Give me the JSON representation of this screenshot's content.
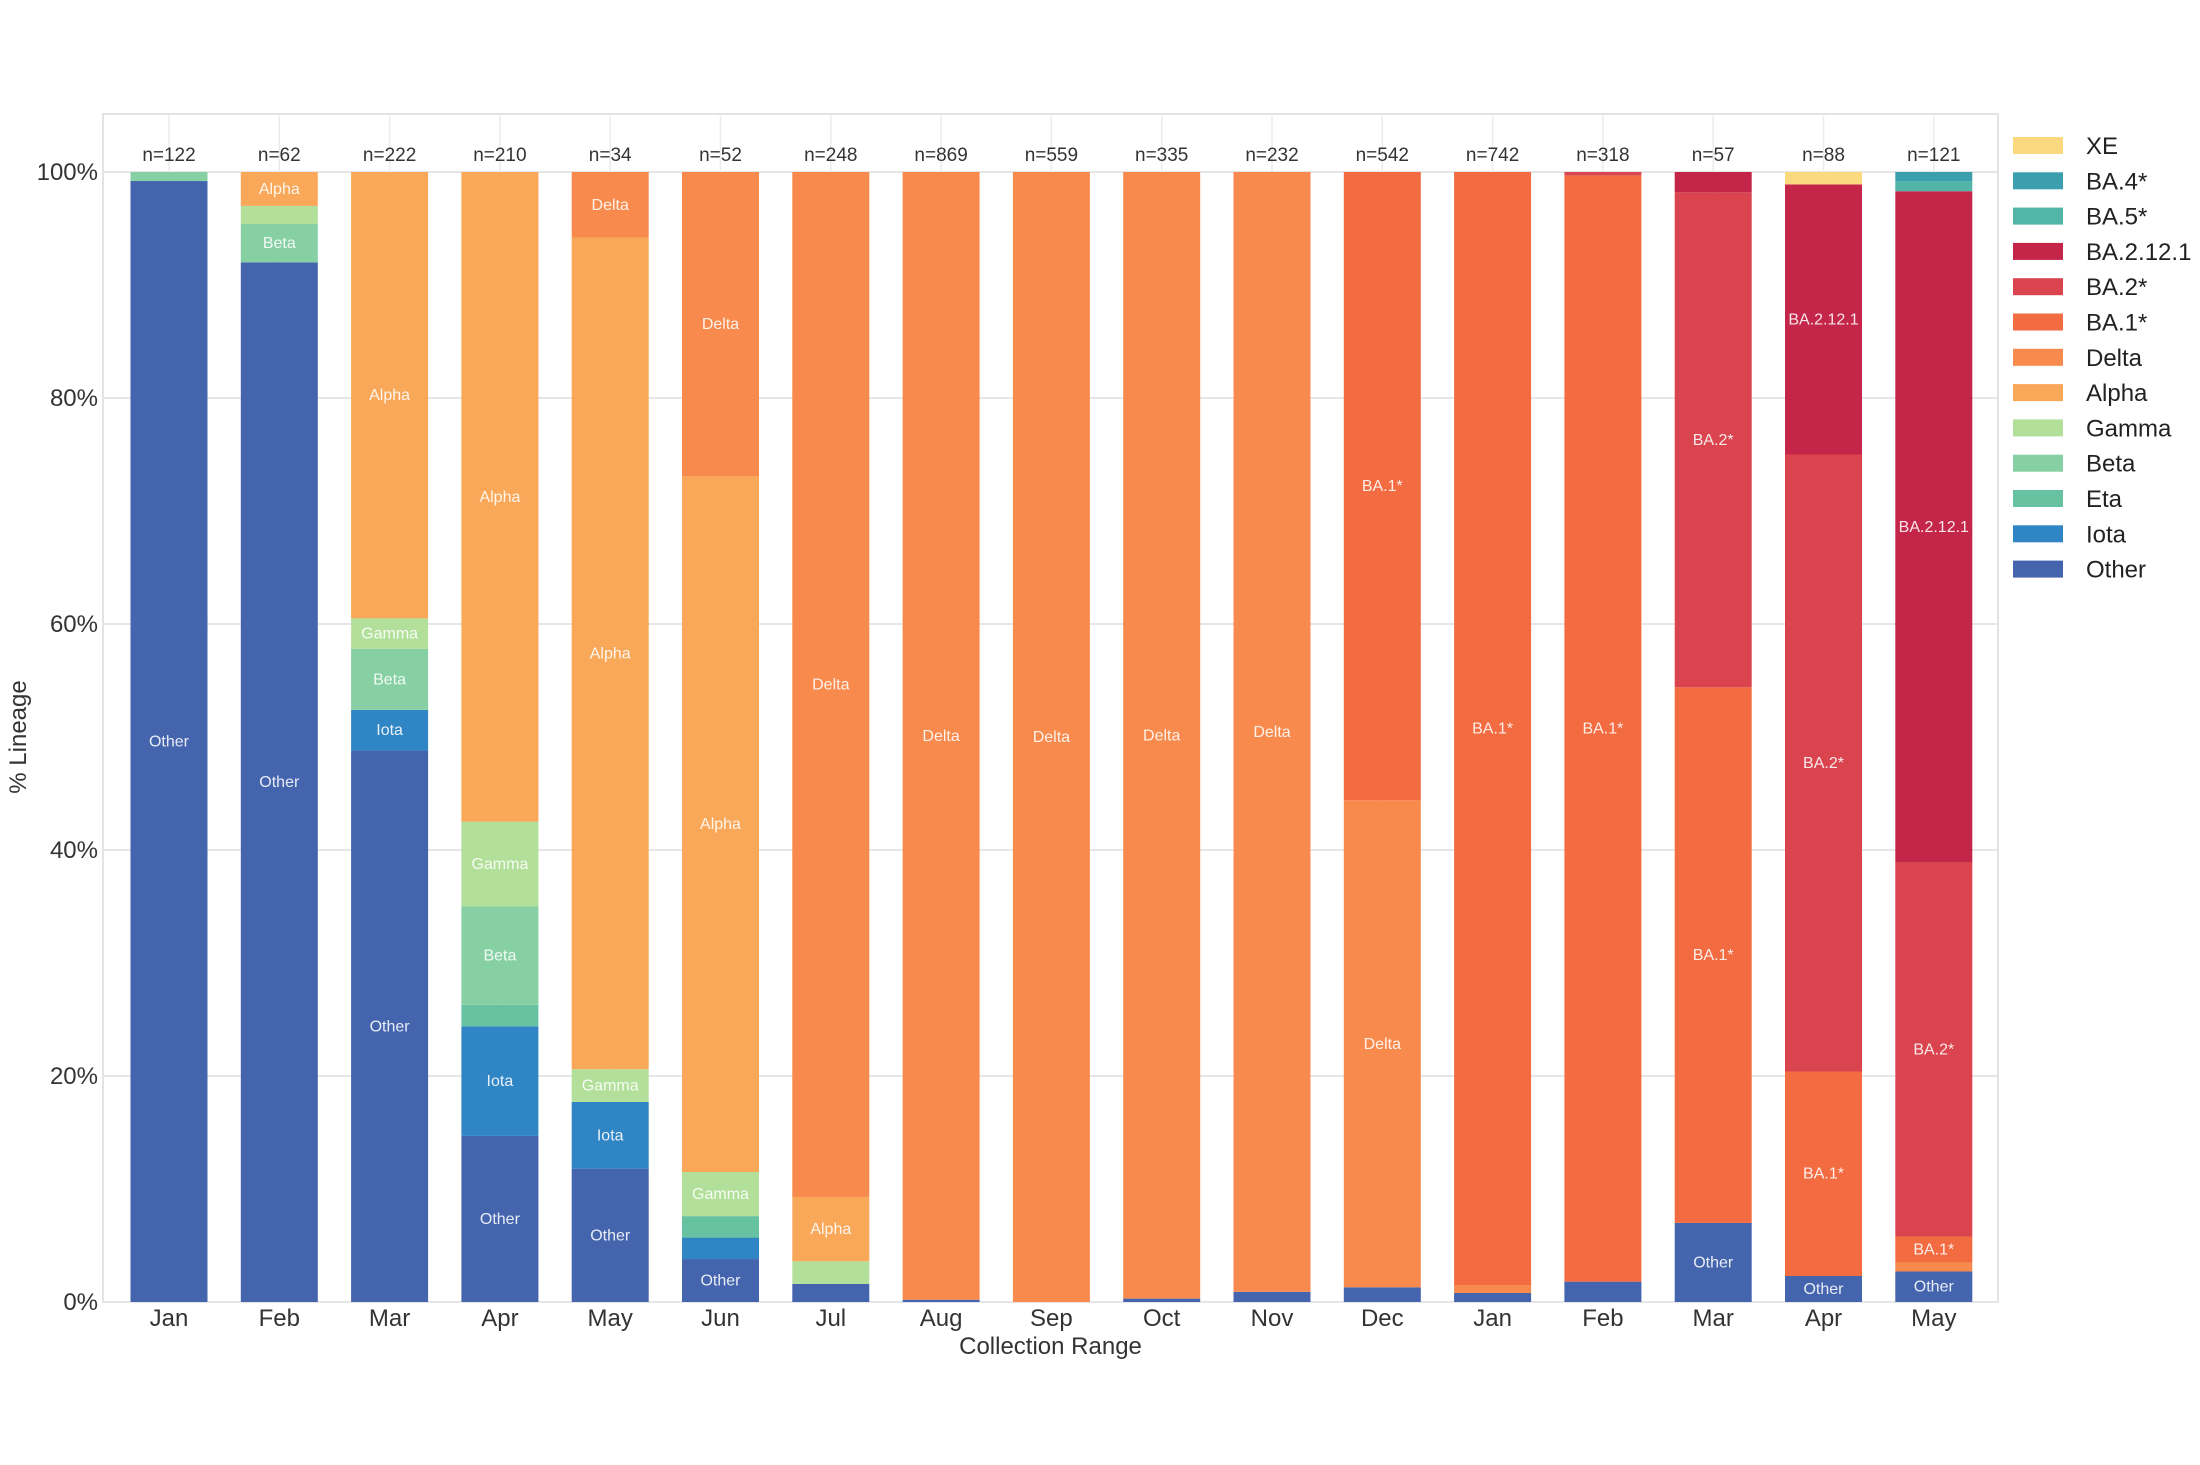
{
  "chart_data": {
    "type": "bar",
    "stacked": true,
    "title": "",
    "xlabel": "Collection Range",
    "ylabel": "% Lineage",
    "ylim": [
      0,
      100
    ],
    "yticks": [
      "0%",
      "20%",
      "40%",
      "60%",
      "80%",
      "100%"
    ],
    "ytick_values": [
      0,
      20,
      40,
      60,
      80,
      100
    ],
    "grid": true,
    "legend_position": "right",
    "categories": [
      "Jan",
      "Feb",
      "Mar",
      "Apr",
      "May",
      "Jun",
      "Jul",
      "Aug",
      "Sep",
      "Oct",
      "Nov",
      "Dec",
      "Jan",
      "Feb",
      "Mar",
      "Apr",
      "May"
    ],
    "sample_counts": [
      "n=122",
      "n=62",
      "n=222",
      "n=210",
      "n=34",
      "n=52",
      "n=248",
      "n=869",
      "n=559",
      "n=335",
      "n=232",
      "n=542",
      "n=742",
      "n=318",
      "n=57",
      "n=88",
      "n=121"
    ],
    "legend": [
      {
        "name": "XE",
        "color": "#fbd97f"
      },
      {
        "name": "BA.4*",
        "color": "#3b9fae"
      },
      {
        "name": "BA.5*",
        "color": "#52b5a8"
      },
      {
        "name": "BA.2.12.1",
        "color": "#c4264a"
      },
      {
        "name": "BA.2*",
        "color": "#d9444e"
      },
      {
        "name": "BA.1*",
        "color": "#f26b41"
      },
      {
        "name": "Delta",
        "color": "#f78a4c"
      },
      {
        "name": "Alpha",
        "color": "#f9a85a"
      },
      {
        "name": "Gamma",
        "color": "#b2e09a"
      },
      {
        "name": "Beta",
        "color": "#86d0a3"
      },
      {
        "name": "Eta",
        "color": "#66c2a0"
      },
      {
        "name": "Iota",
        "color": "#3085c4"
      },
      {
        "name": "Other",
        "color": "#4464ae"
      }
    ],
    "series": [
      {
        "name": "Other",
        "values": [
          99.2,
          92.0,
          48.8,
          14.7,
          11.8,
          3.8,
          1.6,
          0.2,
          0.0,
          0.3,
          0.9,
          1.3,
          0.8,
          1.8,
          7.0,
          2.3,
          2.7
        ]
      },
      {
        "name": "Iota",
        "values": [
          0,
          0,
          3.6,
          9.7,
          5.9,
          1.9,
          0,
          0,
          0,
          0,
          0,
          0,
          0,
          0,
          0,
          0,
          0
        ]
      },
      {
        "name": "Eta",
        "values": [
          0,
          0,
          0,
          1.9,
          0,
          1.9,
          0,
          0,
          0,
          0,
          0,
          0,
          0,
          0,
          0,
          0,
          0
        ]
      },
      {
        "name": "Beta",
        "values": [
          0.8,
          3.4,
          5.4,
          8.7,
          0,
          0,
          0,
          0,
          0,
          0,
          0,
          0,
          0,
          0,
          0,
          0,
          0
        ]
      },
      {
        "name": "Gamma",
        "values": [
          0,
          1.6,
          2.7,
          7.5,
          2.9,
          3.9,
          2.0,
          0,
          0,
          0,
          0,
          0,
          0,
          0,
          0,
          0,
          0
        ]
      },
      {
        "name": "Alpha",
        "values": [
          0,
          3.0,
          39.5,
          57.5,
          73.6,
          61.6,
          5.7,
          0,
          0,
          0,
          0,
          0,
          0,
          0,
          0,
          0,
          0
        ]
      },
      {
        "name": "Delta",
        "values": [
          0,
          0,
          0,
          0,
          5.8,
          26.9,
          90.7,
          99.8,
          100,
          99.7,
          99.1,
          43.1,
          0.7,
          0,
          0,
          0,
          0.8
        ]
      },
      {
        "name": "BA.1*",
        "values": [
          0,
          0,
          0,
          0,
          0,
          0,
          0,
          0,
          0,
          0,
          0,
          55.6,
          98.5,
          97.9,
          47.4,
          18.1,
          2.3
        ]
      },
      {
        "name": "BA.2*",
        "values": [
          0,
          0,
          0,
          0,
          0,
          0,
          0,
          0,
          0,
          0,
          0,
          0,
          0,
          0.3,
          43.8,
          54.6,
          33.1
        ]
      },
      {
        "name": "BA.2.12.1",
        "values": [
          0,
          0,
          0,
          0,
          0,
          0,
          0,
          0,
          0,
          0,
          0,
          0,
          0,
          0,
          1.8,
          23.9,
          59.4
        ]
      },
      {
        "name": "BA.5*",
        "values": [
          0,
          0,
          0,
          0,
          0,
          0,
          0,
          0,
          0,
          0,
          0,
          0,
          0,
          0,
          0,
          0,
          0.9
        ]
      },
      {
        "name": "BA.4*",
        "values": [
          0,
          0,
          0,
          0,
          0,
          0,
          0,
          0,
          0,
          0,
          0,
          0,
          0,
          0,
          0,
          0,
          0.8
        ]
      },
      {
        "name": "XE",
        "values": [
          0,
          0,
          0,
          0,
          0,
          0,
          0,
          0,
          0,
          0,
          0,
          0,
          0,
          0,
          0,
          1.1,
          0
        ]
      }
    ],
    "segment_labels": [
      {
        "bar": 0,
        "series": "Other",
        "text": "Other"
      },
      {
        "bar": 1,
        "series": "Other",
        "text": "Other"
      },
      {
        "bar": 1,
        "series": "Beta",
        "text": "Beta"
      },
      {
        "bar": 1,
        "series": "Alpha",
        "text": "Alpha"
      },
      {
        "bar": 2,
        "series": "Other",
        "text": "Other"
      },
      {
        "bar": 2,
        "series": "Iota",
        "text": "Iota"
      },
      {
        "bar": 2,
        "series": "Beta",
        "text": "Beta"
      },
      {
        "bar": 2,
        "series": "Gamma",
        "text": "Gamma"
      },
      {
        "bar": 2,
        "series": "Alpha",
        "text": "Alpha"
      },
      {
        "bar": 3,
        "series": "Other",
        "text": "Other"
      },
      {
        "bar": 3,
        "series": "Iota",
        "text": "Iota"
      },
      {
        "bar": 3,
        "series": "Beta",
        "text": "Beta"
      },
      {
        "bar": 3,
        "series": "Gamma",
        "text": "Gamma"
      },
      {
        "bar": 3,
        "series": "Alpha",
        "text": "Alpha"
      },
      {
        "bar": 4,
        "series": "Other",
        "text": "Other"
      },
      {
        "bar": 4,
        "series": "Iota",
        "text": "Iota"
      },
      {
        "bar": 4,
        "series": "Gamma",
        "text": "Gamma"
      },
      {
        "bar": 4,
        "series": "Alpha",
        "text": "Alpha"
      },
      {
        "bar": 4,
        "series": "Delta",
        "text": "Delta"
      },
      {
        "bar": 5,
        "series": "Other",
        "text": "Other"
      },
      {
        "bar": 5,
        "series": "Gamma",
        "text": "Gamma"
      },
      {
        "bar": 5,
        "series": "Alpha",
        "text": "Alpha"
      },
      {
        "bar": 5,
        "series": "Delta",
        "text": "Delta"
      },
      {
        "bar": 6,
        "series": "Alpha",
        "text": "Alpha"
      },
      {
        "bar": 6,
        "series": "Delta",
        "text": "Delta"
      },
      {
        "bar": 7,
        "series": "Delta",
        "text": "Delta"
      },
      {
        "bar": 8,
        "series": "Delta",
        "text": "Delta"
      },
      {
        "bar": 9,
        "series": "Delta",
        "text": "Delta"
      },
      {
        "bar": 10,
        "series": "Delta",
        "text": "Delta"
      },
      {
        "bar": 11,
        "series": "Delta",
        "text": "Delta"
      },
      {
        "bar": 11,
        "series": "BA.1*",
        "text": "BA.1*"
      },
      {
        "bar": 12,
        "series": "BA.1*",
        "text": "BA.1*"
      },
      {
        "bar": 13,
        "series": "BA.1*",
        "text": "BA.1*"
      },
      {
        "bar": 14,
        "series": "Other",
        "text": "Other"
      },
      {
        "bar": 14,
        "series": "BA.1*",
        "text": "BA.1*"
      },
      {
        "bar": 14,
        "series": "BA.2*",
        "text": "BA.2*"
      },
      {
        "bar": 15,
        "series": "Other",
        "text": "Other"
      },
      {
        "bar": 15,
        "series": "BA.1*",
        "text": "BA.1*"
      },
      {
        "bar": 15,
        "series": "BA.2*",
        "text": "BA.2*"
      },
      {
        "bar": 15,
        "series": "BA.2.12.1",
        "text": "BA.2.12.1"
      },
      {
        "bar": 16,
        "series": "Other",
        "text": "Other"
      },
      {
        "bar": 16,
        "series": "BA.1*",
        "text": "BA.1*"
      },
      {
        "bar": 16,
        "series": "BA.2*",
        "text": "BA.2*"
      },
      {
        "bar": 16,
        "series": "BA.2.12.1",
        "text": "BA.2.12.1"
      }
    ]
  }
}
